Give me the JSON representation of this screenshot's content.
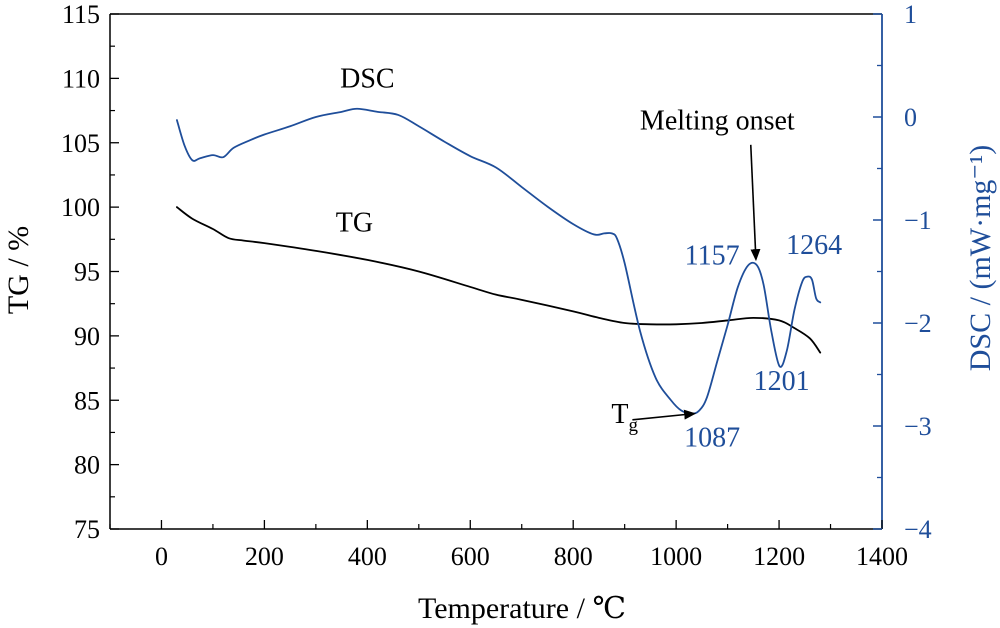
{
  "chart_data": {
    "type": "line",
    "xlabel": "Temperature / ℃",
    "ylabel_left": "TG / %",
    "ylabel_right": "DSC / (mW·mg⁻¹)",
    "xlim": [
      -100,
      1400
    ],
    "ylim_left": [
      75,
      115
    ],
    "ylim_right": [
      -4,
      1
    ],
    "x_ticks": [
      0,
      200,
      400,
      600,
      800,
      1000,
      1200,
      1400
    ],
    "x_tick_labels": [
      "0",
      "200",
      "400",
      "600",
      "800",
      "1000",
      "1200",
      "1400"
    ],
    "y_left_ticks": [
      75,
      80,
      85,
      90,
      95,
      100,
      105,
      110,
      115
    ],
    "y_left_tick_labels": [
      "75",
      "80",
      "85",
      "90",
      "95",
      "100",
      "105",
      "110",
      "115"
    ],
    "y_right_ticks": [
      -4,
      -3,
      -2,
      -1,
      0,
      1
    ],
    "y_right_tick_labels": [
      "−4",
      "−3",
      "−2",
      "−1",
      "0",
      "1"
    ],
    "grid": false,
    "colors": {
      "tg": "#000000",
      "dsc": "#1f4e9a",
      "right_axis": "#1f4e9a",
      "left_axis": "#000000"
    },
    "series": [
      {
        "name": "TG",
        "axis": "left",
        "x": [
          30,
          60,
          100,
          130,
          160,
          200,
          300,
          400,
          500,
          600,
          650,
          700,
          800,
          850,
          900,
          950,
          1000,
          1050,
          1100,
          1150,
          1200,
          1230,
          1260,
          1280
        ],
        "y": [
          100.0,
          99.1,
          98.3,
          97.6,
          97.4,
          97.2,
          96.6,
          95.9,
          95.0,
          93.8,
          93.2,
          92.8,
          91.9,
          91.4,
          91.0,
          90.9,
          90.9,
          91.0,
          91.2,
          91.4,
          91.2,
          90.6,
          89.8,
          88.7
        ]
      },
      {
        "name": "DSC",
        "axis": "right",
        "x": [
          30,
          45,
          60,
          75,
          100,
          120,
          140,
          170,
          200,
          250,
          300,
          350,
          380,
          420,
          460,
          500,
          550,
          600,
          650,
          700,
          750,
          800,
          840,
          860,
          875,
          885,
          900,
          930,
          960,
          990,
          1010,
          1030,
          1045,
          1060,
          1080,
          1100,
          1120,
          1140,
          1157,
          1170,
          1185,
          1201,
          1215,
          1230,
          1245,
          1255,
          1264,
          1272,
          1280
        ],
        "y": [
          -0.03,
          -0.28,
          -0.42,
          -0.4,
          -0.37,
          -0.39,
          -0.3,
          -0.23,
          -0.17,
          -0.09,
          0.0,
          0.05,
          0.08,
          0.05,
          0.02,
          -0.09,
          -0.24,
          -0.38,
          -0.49,
          -0.68,
          -0.87,
          -1.04,
          -1.14,
          -1.13,
          -1.13,
          -1.18,
          -1.42,
          -2.08,
          -2.53,
          -2.75,
          -2.85,
          -2.88,
          -2.85,
          -2.72,
          -2.37,
          -2.02,
          -1.65,
          -1.44,
          -1.44,
          -1.63,
          -2.08,
          -2.42,
          -2.27,
          -1.87,
          -1.6,
          -1.55,
          -1.58,
          -1.76,
          -1.8
        ]
      }
    ],
    "annotations": [
      {
        "text": "DSC",
        "x": 400,
        "y": 109.3,
        "axis": "left"
      },
      {
        "text": "TG",
        "x": 375,
        "y": 98.1,
        "axis": "left"
      },
      {
        "text": "1157",
        "x": 1070,
        "y": -1.43,
        "axis": "right"
      },
      {
        "text": "1264",
        "x": 1268,
        "y": -1.33,
        "axis": "right"
      },
      {
        "text": "1201",
        "x": 1205,
        "y": -2.65,
        "axis": "right"
      },
      {
        "text": "1087",
        "x": 1070,
        "y": -3.2,
        "axis": "right"
      },
      {
        "text": "Melting onset",
        "x": 1080,
        "y": -0.12,
        "axis": "right"
      },
      {
        "text": "T",
        "sub": "g",
        "x": 900,
        "y": -2.97,
        "axis": "right"
      }
    ],
    "arrows": [
      {
        "name": "melting-onset-arrow",
        "from": [
          1145,
          -0.27
        ],
        "to": [
          1155,
          -1.38
        ],
        "axis": "right"
      },
      {
        "name": "tg-arrow",
        "from": [
          915,
          -2.94
        ],
        "to": [
          1035,
          -2.88
        ],
        "axis": "right"
      }
    ]
  }
}
